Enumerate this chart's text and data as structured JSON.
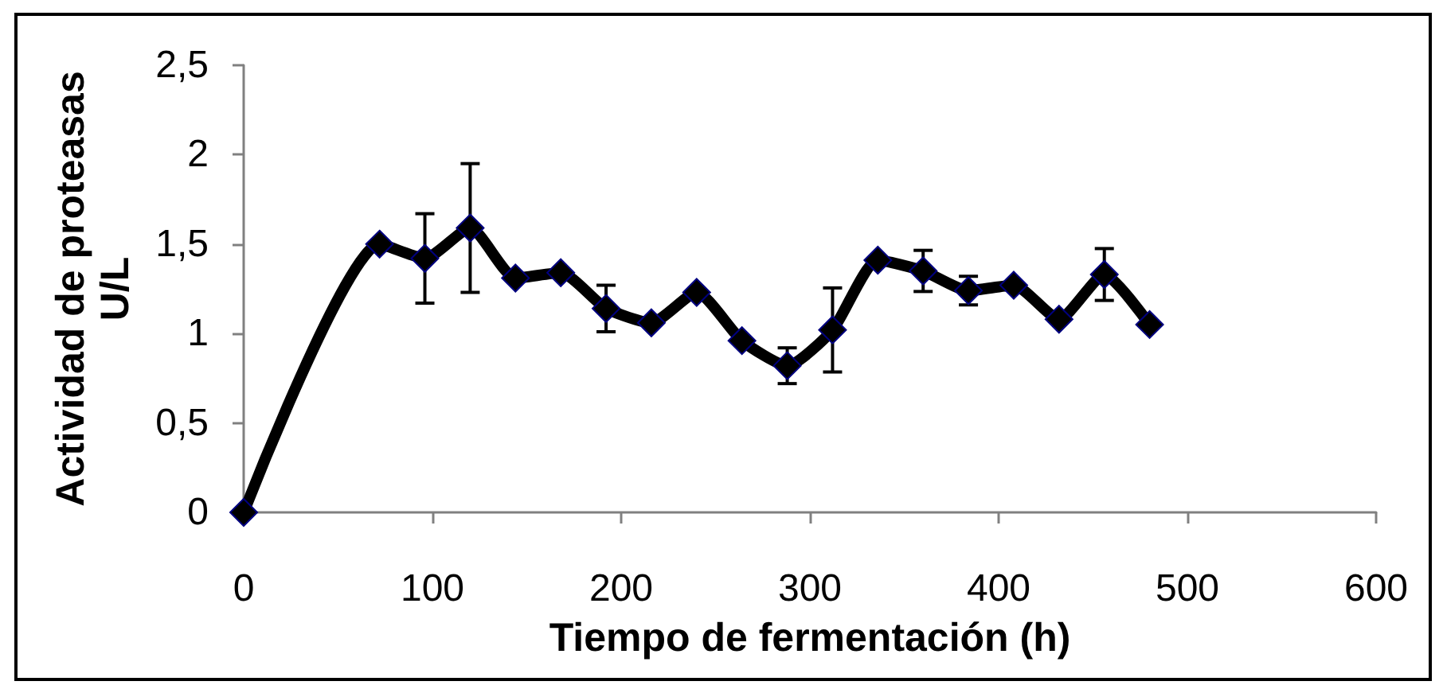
{
  "chart_data": {
    "type": "line",
    "xlabel": "Tiempo de fermentación (h)",
    "ylabel": "Actividad de proteasas\nU/L",
    "x": [
      0,
      72,
      96,
      120,
      144,
      168,
      192,
      216,
      240,
      264,
      288,
      312,
      336,
      360,
      384,
      408,
      432,
      456,
      480
    ],
    "values": [
      0,
      1.5,
      1.42,
      1.59,
      1.31,
      1.34,
      1.14,
      1.06,
      1.23,
      0.96,
      0.82,
      1.02,
      1.41,
      1.35,
      1.24,
      1.27,
      1.08,
      1.33,
      1.05
    ],
    "errors": [
      null,
      null,
      0.25,
      0.36,
      null,
      null,
      0.13,
      null,
      null,
      null,
      0.1,
      0.235,
      null,
      0.115,
      0.08,
      null,
      null,
      0.145,
      null
    ],
    "color": "#000000",
    "marker": "diamond",
    "line_style": "solid",
    "xlim": [
      0,
      600
    ],
    "xticks": [
      0,
      100,
      200,
      300,
      400,
      500,
      600
    ],
    "ylim": [
      0,
      2.5
    ],
    "yticks": [
      0,
      {
        "value": 0.5,
        "label": "0,5"
      },
      1,
      {
        "value": 1.5,
        "label": "1,5"
      },
      2,
      {
        "value": 2.5,
        "label": "2,5"
      }
    ]
  }
}
